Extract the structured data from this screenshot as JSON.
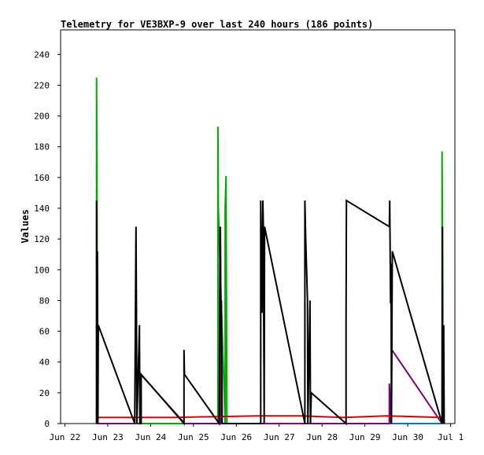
{
  "chart_data": {
    "type": "line",
    "title": "Telemetry for VE3BXP-9 over last 240 hours (186 points)",
    "xlabel": "",
    "ylabel": "Values",
    "xlim": [
      -0.1,
      9.1
    ],
    "ylim": [
      0,
      256
    ],
    "yticks": [
      0,
      20,
      40,
      60,
      80,
      100,
      120,
      140,
      160,
      180,
      200,
      220,
      240
    ],
    "xticks": [
      {
        "label": "Jun 22",
        "x": 0
      },
      {
        "label": "Jun 23",
        "x": 1
      },
      {
        "label": "Jun 24",
        "x": 2
      },
      {
        "label": "Jun 25",
        "x": 3
      },
      {
        "label": "Jun 26",
        "x": 4
      },
      {
        "label": "Jun 27",
        "x": 5
      },
      {
        "label": "Jun 28",
        "x": 6
      },
      {
        "label": "Jun 29",
        "x": 7
      },
      {
        "label": "Jun 30",
        "x": 8
      },
      {
        "label": "Jul 1",
        "x": 9
      }
    ],
    "grid": false,
    "colors": {
      "series1": "#000000",
      "series2": "#00aa00",
      "series3": "#800080",
      "series4": "#dd0000",
      "series5": "#0077cc",
      "axis": "#000000"
    },
    "series": [
      {
        "color": "#00aa00",
        "points": [
          [
            0.74,
            0
          ],
          [
            0.74,
            225
          ],
          [
            0.75,
            140
          ],
          [
            0.76,
            0
          ],
          [
            3.57,
            0
          ],
          [
            3.57,
            193
          ],
          [
            3.58,
            140
          ],
          [
            3.74,
            0
          ],
          [
            3.74,
            140
          ],
          [
            3.76,
            161
          ],
          [
            3.78,
            0
          ],
          [
            8.8,
            0
          ],
          [
            8.8,
            177
          ],
          [
            8.81,
            120
          ],
          [
            8.82,
            0
          ]
        ]
      },
      {
        "color": "#800080",
        "points": [
          [
            0.74,
            0
          ],
          [
            1.77,
            0
          ],
          [
            1.77,
            32
          ],
          [
            2.8,
            0
          ],
          [
            3.63,
            0
          ],
          [
            3.63,
            128
          ],
          [
            3.66,
            0
          ],
          [
            7.57,
            0
          ],
          [
            7.57,
            26
          ],
          [
            7.61,
            0
          ],
          [
            7.63,
            48
          ],
          [
            8.8,
            0
          ],
          [
            8.83,
            0
          ]
        ]
      },
      {
        "color": "#dd0000",
        "points": [
          [
            0.74,
            4
          ],
          [
            1.5,
            4
          ],
          [
            2.5,
            4
          ],
          [
            3.5,
            4.5
          ],
          [
            4.5,
            5
          ],
          [
            5.5,
            5
          ],
          [
            6.5,
            4
          ],
          [
            7.5,
            5
          ],
          [
            8.8,
            4
          ]
        ]
      },
      {
        "color": "#0077cc",
        "points": [
          [
            7.6,
            0
          ],
          [
            8.82,
            0
          ]
        ]
      },
      {
        "color": "#000000",
        "points": [
          [
            0.74,
            0
          ],
          [
            0.74,
            145
          ],
          [
            0.75,
            0
          ],
          [
            0.76,
            112
          ],
          [
            0.77,
            0
          ],
          [
            0.78,
            64
          ],
          [
            1.63,
            0
          ],
          [
            1.66,
            128
          ],
          [
            1.67,
            72
          ],
          [
            1.68,
            0
          ],
          [
            1.74,
            64
          ],
          [
            1.75,
            0
          ],
          [
            1.78,
            0
          ],
          [
            1.78,
            32
          ],
          [
            2.78,
            0
          ],
          [
            2.78,
            48
          ],
          [
            2.79,
            32
          ],
          [
            3.6,
            0
          ],
          [
            3.62,
            128
          ],
          [
            3.63,
            56
          ],
          [
            3.65,
            80
          ],
          [
            3.66,
            40
          ],
          [
            3.67,
            0
          ],
          [
            4.57,
            0
          ],
          [
            4.57,
            145
          ],
          [
            4.6,
            72
          ],
          [
            4.62,
            145
          ],
          [
            4.63,
            128
          ],
          [
            4.65,
            0
          ],
          [
            4.66,
            128
          ],
          [
            5.6,
            0
          ],
          [
            5.6,
            145
          ],
          [
            5.62,
            119
          ],
          [
            5.64,
            100
          ],
          [
            5.66,
            80
          ],
          [
            5.67,
            0
          ],
          [
            5.7,
            48
          ],
          [
            5.72,
            80
          ],
          [
            5.73,
            0
          ],
          [
            5.75,
            20
          ],
          [
            6.56,
            0
          ],
          [
            6.56,
            64
          ],
          [
            6.57,
            145
          ],
          [
            7.57,
            128
          ],
          [
            7.58,
            145
          ],
          [
            7.6,
            78
          ],
          [
            7.61,
            104
          ],
          [
            7.62,
            0
          ],
          [
            7.64,
            112
          ],
          [
            8.8,
            0
          ],
          [
            8.81,
            128
          ],
          [
            8.82,
            0
          ],
          [
            8.84,
            64
          ],
          [
            8.85,
            0
          ]
        ]
      }
    ]
  }
}
